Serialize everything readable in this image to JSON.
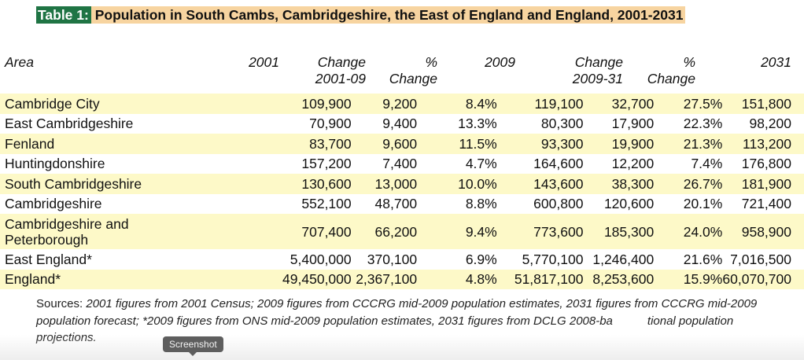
{
  "title": {
    "tag": "Table 1:",
    "text": "Population in South Cambs, Cambridgeshire, the East of England and England, 2001-2031"
  },
  "columns": [
    {
      "line1": "Area",
      "line2": ""
    },
    {
      "line1": "2001",
      "line2": ""
    },
    {
      "line1": "Change",
      "line2": "2001-09"
    },
    {
      "line1": "%",
      "line2": "Change"
    },
    {
      "line1": "2009",
      "line2": ""
    },
    {
      "line1": "Change",
      "line2": "2009-31"
    },
    {
      "line1": "%",
      "line2": "Change"
    },
    {
      "line1": "2031",
      "line2": ""
    }
  ],
  "rows": [
    {
      "area": "Cambridge City",
      "y2001": "109,900",
      "chg0109": "9,200",
      "pct0109": "8.4%",
      "y2009": "119,100",
      "chg0931": "32,700",
      "pct0931": "27.5%",
      "y2031": "151,800"
    },
    {
      "area": "East Cambridgeshire",
      "y2001": "70,900",
      "chg0109": "9,400",
      "pct0109": "13.3%",
      "y2009": "80,300",
      "chg0931": "17,900",
      "pct0931": "22.3%",
      "y2031": "98,200"
    },
    {
      "area": "Fenland",
      "y2001": "83,700",
      "chg0109": "9,600",
      "pct0109": "11.5%",
      "y2009": "93,300",
      "chg0931": "19,900",
      "pct0931": "21.3%",
      "y2031": "113,200"
    },
    {
      "area": "Huntingdonshire",
      "y2001": "157,200",
      "chg0109": "7,400",
      "pct0109": "4.7%",
      "y2009": "164,600",
      "chg0931": "12,200",
      "pct0931": "7.4%",
      "y2031": "176,800"
    },
    {
      "area": "South Cambridgeshire",
      "y2001": "130,600",
      "chg0109": "13,000",
      "pct0109": "10.0%",
      "y2009": "143,600",
      "chg0931": "38,300",
      "pct0931": "26.7%",
      "y2031": "181,900"
    },
    {
      "area": "Cambridgeshire",
      "y2001": "552,100",
      "chg0109": "48,700",
      "pct0109": "8.8%",
      "y2009": "600,800",
      "chg0931": "120,600",
      "pct0931": "20.1%",
      "y2031": "721,400"
    },
    {
      "area": "Cambridgeshire and Peterborough",
      "area_line1": "Cambridgeshire and",
      "area_line2": "Peterborough",
      "y2001": "707,400",
      "chg0109": "66,200",
      "pct0109": "9.4%",
      "y2009": "773,600",
      "chg0931": "185,300",
      "pct0931": "24.0%",
      "y2031": "958,900"
    },
    {
      "area": "East England*",
      "y2001": "5,400,000",
      "chg0109": "370,100",
      "pct0109": "6.9%",
      "y2009": "5,770,100",
      "chg0931": "1,246,400",
      "pct0931": "21.6%",
      "y2031": "7,016,500"
    },
    {
      "area": "England*",
      "y2001": "49,450,000",
      "chg0109": "2,367,100",
      "pct0109": "4.8%",
      "y2009": "51,817,100",
      "chg0931": "8,253,600",
      "pct0931": "15.9%",
      "y2031": "60,070,700"
    }
  ],
  "sources": {
    "label": "Sources:",
    "text_before_tooltip": "2001 figures from 2001 Census; 2009 figures from CCCRG mid-2009 population estimates, 2031 figures from CCCRG mid-2009 population forecast; *2009 figures from ONS mid-2009 population estimates, 2031 figures from DCLG 2008-ba",
    "text_after_tooltip": "tional population projections."
  },
  "tooltip": "Screenshot",
  "colors": {
    "title_tag_bg": "#1f7444",
    "title_bg": "#f7d4a0",
    "shaded_row_bg": "#fdf9c8"
  }
}
